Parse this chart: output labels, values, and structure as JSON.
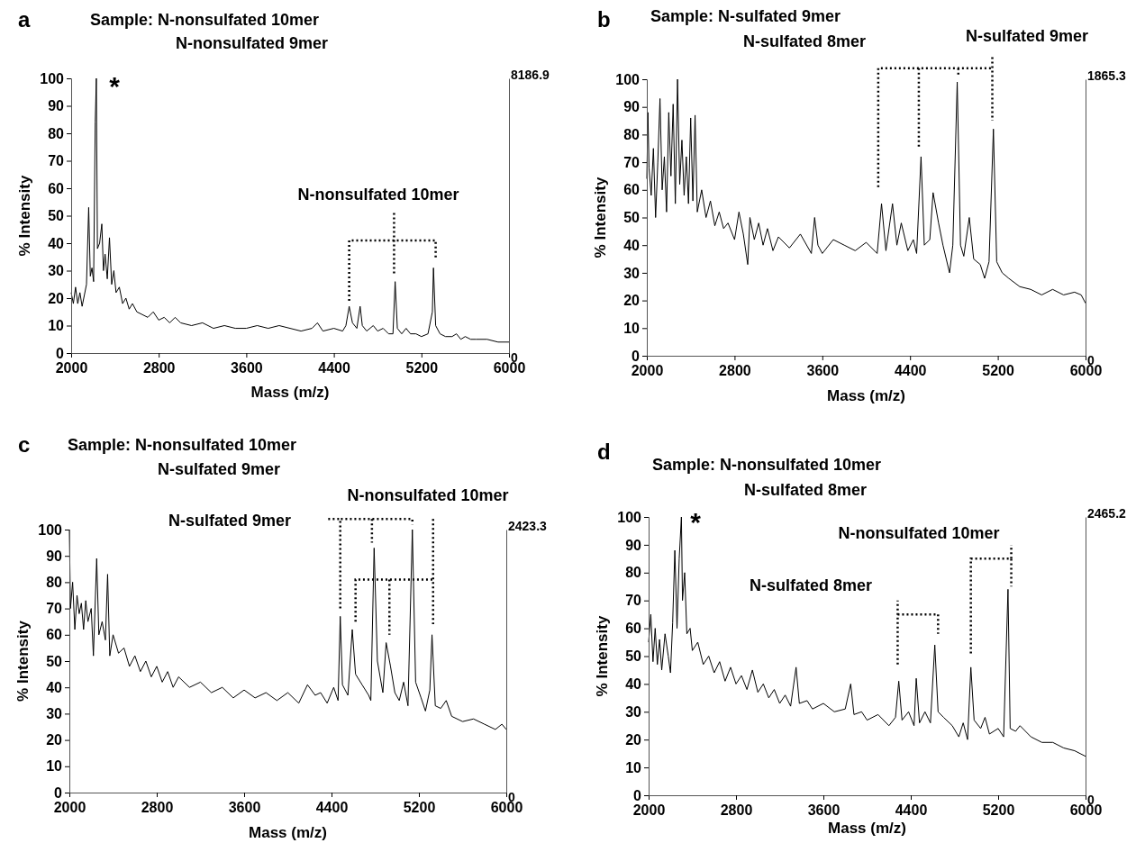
{
  "chart_data": [
    {
      "type": "line",
      "title": "Sample: N-nonsulfated 10mer\nN-nonsulfated 9mer",
      "xlabel": "Mass (m/z)",
      "ylabel": "% Intensity",
      "annotations": [
        "a",
        "*",
        "N-nonsulfated 10mer"
      ],
      "xlim": [
        2000,
        6000
      ],
      "xticks": [
        2000,
        2800,
        3600,
        4400,
        5200,
        6000
      ],
      "ylim": [
        0,
        100
      ],
      "yticks": [
        0,
        10,
        20,
        30,
        40,
        50,
        60,
        70,
        80,
        90,
        100
      ],
      "y2lim": [
        0,
        8186.9
      ],
      "y2ticks": [
        0,
        8186.9
      ],
      "series": [
        {
          "color": "#000000",
          "x": [
            2000,
            2020,
            2040,
            2060,
            2080,
            2100,
            2120,
            2140,
            2160,
            2175,
            2190,
            2205,
            2220,
            2230,
            2240,
            2260,
            2280,
            2295,
            2310,
            2330,
            2350,
            2370,
            2390,
            2410,
            2440,
            2470,
            2500,
            2530,
            2560,
            2600,
            2650,
            2700,
            2750,
            2800,
            2850,
            2900,
            2950,
            3000,
            3100,
            3200,
            3300,
            3400,
            3500,
            3600,
            3700,
            3800,
            3900,
            4000,
            4100,
            4200,
            4250,
            4300,
            4400,
            4480,
            4510,
            4540,
            4570,
            4610,
            4640,
            4660,
            4700,
            4760,
            4800,
            4850,
            4900,
            4940,
            4960,
            4980,
            5020,
            5060,
            5100,
            5150,
            5200,
            5260,
            5300,
            5310,
            5330,
            5370,
            5420,
            5480,
            5520,
            5560,
            5600,
            5650,
            5700,
            5800,
            5900,
            6000
          ],
          "values": [
            22,
            18,
            24,
            18,
            22,
            17,
            21,
            25,
            53,
            28,
            31,
            26,
            84,
            100,
            38,
            40,
            47,
            30,
            36,
            27,
            42,
            25,
            30,
            22,
            24,
            18,
            20,
            16,
            18,
            15,
            14,
            13,
            15,
            12,
            13,
            11,
            13,
            11,
            10,
            11,
            9,
            10,
            9,
            9,
            10,
            9,
            10,
            9,
            8,
            9,
            11,
            8,
            9,
            8,
            10,
            17,
            11,
            9,
            17,
            10,
            8,
            10,
            8,
            9,
            7,
            7,
            26,
            9,
            7,
            9,
            7,
            7,
            6,
            7,
            15,
            31,
            10,
            7,
            6,
            6,
            7,
            5,
            6,
            5,
            5,
            5,
            4,
            4
          ]
        }
      ]
    },
    {
      "type": "line",
      "title": "Sample: N-sulfated 9mer\nN-sulfated 8mer",
      "xlabel": "Mass (m/z)",
      "ylabel": "% Intensity",
      "annotations": [
        "b",
        "N-sulfated 9mer"
      ],
      "xlim": [
        2000,
        6000
      ],
      "xticks": [
        2000,
        2800,
        3600,
        4400,
        5200,
        6000
      ],
      "ylim": [
        0,
        100
      ],
      "yticks": [
        0,
        10,
        20,
        30,
        40,
        50,
        60,
        70,
        80,
        90,
        100
      ],
      "y2lim": [
        0,
        1865.3
      ],
      "y2ticks": [
        0,
        1865.3
      ],
      "series": [
        {
          "color": "#000000",
          "x": [
            2000,
            2010,
            2020,
            2040,
            2060,
            2080,
            2100,
            2120,
            2140,
            2160,
            2180,
            2200,
            2220,
            2240,
            2260,
            2280,
            2300,
            2320,
            2340,
            2360,
            2380,
            2400,
            2420,
            2440,
            2460,
            2500,
            2540,
            2580,
            2620,
            2660,
            2700,
            2740,
            2800,
            2840,
            2880,
            2920,
            2940,
            2980,
            3020,
            3060,
            3100,
            3150,
            3200,
            3300,
            3400,
            3500,
            3530,
            3560,
            3600,
            3700,
            3800,
            3900,
            4000,
            4100,
            4140,
            4180,
            4240,
            4280,
            4320,
            4380,
            4430,
            4460,
            4500,
            4530,
            4580,
            4610,
            4660,
            4700,
            4760,
            4790,
            4830,
            4860,
            4890,
            4940,
            4980,
            5040,
            5080,
            5120,
            5160,
            5190,
            5240,
            5300,
            5400,
            5500,
            5600,
            5700,
            5800,
            5900,
            5960,
            6000
          ],
          "values": [
            64,
            88,
            68,
            58,
            75,
            50,
            70,
            93,
            60,
            72,
            52,
            88,
            65,
            91,
            55,
            100,
            62,
            78,
            58,
            72,
            55,
            86,
            56,
            87,
            52,
            60,
            50,
            56,
            47,
            52,
            46,
            48,
            42,
            52,
            44,
            33,
            50,
            42,
            48,
            40,
            46,
            38,
            43,
            39,
            44,
            37,
            50,
            40,
            37,
            42,
            40,
            38,
            41,
            37,
            55,
            38,
            55,
            40,
            48,
            38,
            42,
            37,
            72,
            40,
            42,
            59,
            48,
            40,
            30,
            40,
            99,
            40,
            36,
            50,
            35,
            33,
            28,
            34,
            82,
            34,
            30,
            28,
            25,
            24,
            22,
            24,
            22,
            23,
            22,
            19
          ]
        }
      ]
    },
    {
      "type": "line",
      "title": "Sample: N-nonsulfated 10mer\nN-sulfated 9mer",
      "xlabel": "Mass (m/z)",
      "ylabel": "% Intensity",
      "annotations": [
        "c",
        "N-nonsulfated 10mer",
        "N-sulfated 9mer"
      ],
      "xlim": [
        2000,
        6000
      ],
      "xticks": [
        2000,
        2800,
        3600,
        4400,
        5200,
        6000
      ],
      "ylim": [
        0,
        100
      ],
      "yticks": [
        0,
        10,
        20,
        30,
        40,
        50,
        60,
        70,
        80,
        90,
        100
      ],
      "y2lim": [
        0,
        2423.3
      ],
      "y2ticks": [
        0,
        2423.3
      ],
      "series": [
        {
          "color": "#000000",
          "x": [
            2000,
            2010,
            2030,
            2050,
            2070,
            2090,
            2110,
            2130,
            2150,
            2170,
            2200,
            2220,
            2250,
            2270,
            2300,
            2330,
            2350,
            2370,
            2400,
            2450,
            2500,
            2550,
            2600,
            2650,
            2700,
            2750,
            2800,
            2850,
            2900,
            2950,
            3000,
            3100,
            3200,
            3300,
            3400,
            3500,
            3600,
            3700,
            3800,
            3900,
            4000,
            4100,
            4180,
            4250,
            4300,
            4360,
            4420,
            4460,
            4480,
            4500,
            4550,
            4590,
            4620,
            4680,
            4740,
            4760,
            4790,
            4820,
            4870,
            4900,
            4940,
            4980,
            5020,
            5060,
            5100,
            5140,
            5170,
            5220,
            5260,
            5300,
            5320,
            5350,
            5400,
            5450,
            5500,
            5600,
            5700,
            5800,
            5900,
            5960,
            6000
          ],
          "values": [
            100,
            70,
            80,
            62,
            75,
            68,
            72,
            62,
            73,
            65,
            70,
            52,
            89,
            60,
            65,
            58,
            83,
            52,
            60,
            53,
            55,
            48,
            52,
            46,
            50,
            44,
            48,
            42,
            46,
            40,
            44,
            40,
            42,
            38,
            40,
            36,
            39,
            36,
            38,
            35,
            38,
            34,
            41,
            37,
            38,
            34,
            40,
            35,
            67,
            41,
            37,
            62,
            45,
            41,
            37,
            35,
            93,
            50,
            38,
            57,
            48,
            38,
            35,
            42,
            33,
            100,
            42,
            36,
            31,
            39,
            60,
            33,
            32,
            35,
            29,
            27,
            28,
            26,
            24,
            26,
            24
          ]
        }
      ]
    },
    {
      "type": "line",
      "title": "Sample: N-nonsulfated 10mer\nN-sulfated 8mer",
      "xlabel": "Mass (m/z)",
      "ylabel": "% Intensity",
      "annotations": [
        "d",
        "*",
        "N-nonsulfated 10mer",
        "N-sulfated 8mer"
      ],
      "xlim": [
        2000,
        6000
      ],
      "xticks": [
        2000,
        2800,
        3600,
        4400,
        5200,
        6000
      ],
      "ylim": [
        0,
        100
      ],
      "yticks": [
        0,
        10,
        20,
        30,
        40,
        50,
        60,
        70,
        80,
        90,
        100
      ],
      "y2lim": [
        0,
        2465.2
      ],
      "y2ticks": [
        0,
        2465.2
      ],
      "series": [
        {
          "color": "#000000",
          "x": [
            2000,
            2020,
            2040,
            2060,
            2080,
            2100,
            2120,
            2150,
            2180,
            2200,
            2220,
            2240,
            2260,
            2280,
            2300,
            2310,
            2330,
            2350,
            2380,
            2400,
            2450,
            2500,
            2550,
            2600,
            2650,
            2700,
            2750,
            2800,
            2850,
            2900,
            2950,
            3000,
            3050,
            3100,
            3150,
            3200,
            3250,
            3300,
            3350,
            3380,
            3450,
            3500,
            3600,
            3700,
            3800,
            3850,
            3880,
            3950,
            4000,
            4100,
            4200,
            4260,
            4290,
            4320,
            4380,
            4430,
            4450,
            4480,
            4530,
            4580,
            4620,
            4650,
            4700,
            4780,
            4840,
            4880,
            4920,
            4950,
            4980,
            5040,
            5080,
            5120,
            5200,
            5250,
            5290,
            5310,
            5360,
            5400,
            5500,
            5600,
            5700,
            5800,
            5900,
            6000
          ],
          "values": [
            55,
            65,
            48,
            60,
            47,
            56,
            45,
            58,
            50,
            44,
            62,
            88,
            60,
            85,
            100,
            70,
            80,
            58,
            60,
            52,
            55,
            47,
            50,
            44,
            48,
            41,
            46,
            40,
            43,
            38,
            45,
            37,
            40,
            35,
            38,
            33,
            36,
            32,
            46,
            33,
            34,
            31,
            33,
            30,
            31,
            40,
            29,
            30,
            27,
            29,
            25,
            28,
            41,
            27,
            30,
            25,
            42,
            26,
            30,
            26,
            54,
            30,
            28,
            25,
            21,
            26,
            20,
            46,
            27,
            24,
            28,
            22,
            24,
            21,
            74,
            24,
            23,
            25,
            21,
            19,
            19,
            17,
            16,
            14
          ]
        }
      ]
    }
  ]
}
